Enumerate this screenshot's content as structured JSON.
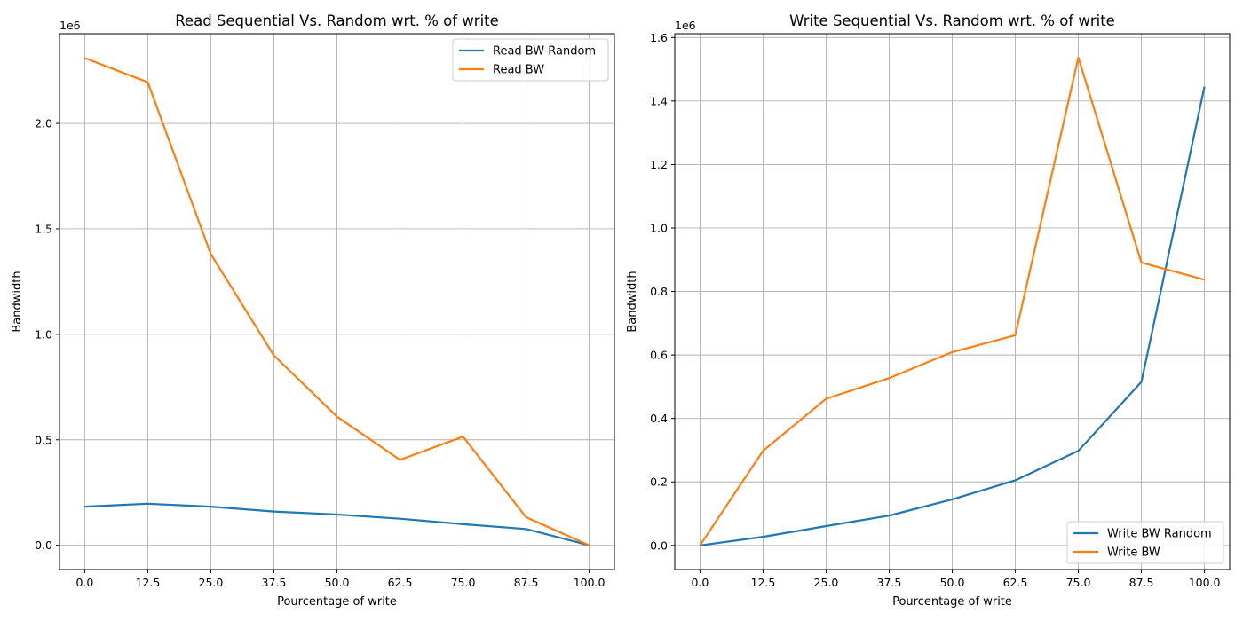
{
  "chart_data": [
    {
      "type": "line",
      "title": "Read Sequential Vs. Random wrt. % of write",
      "xlabel": "Pourcentage of write",
      "ylabel": "Bandwidth",
      "offset_label": "1e6",
      "x": [
        0.0,
        12.5,
        25.0,
        37.5,
        50.0,
        62.5,
        75.0,
        87.5,
        100.0
      ],
      "x_ticks": [
        "0.0",
        "12.5",
        "25.0",
        "37.5",
        "50.0",
        "62.5",
        "75.0",
        "87.5",
        "100.0"
      ],
      "y_ticks": [
        {
          "value": 0.0,
          "label": "0.0"
        },
        {
          "value": 0.5,
          "label": "0.5"
        },
        {
          "value": 1.0,
          "label": "1.0"
        },
        {
          "value": 1.5,
          "label": "1.5"
        },
        {
          "value": 2.0,
          "label": "2.0"
        }
      ],
      "xlim": [
        -5.0,
        105.0
      ],
      "ylim": [
        -0.115,
        2.425
      ],
      "y_scale": 1000000,
      "grid": true,
      "legend_placement": "top-right",
      "series": [
        {
          "name": "Read BW Random",
          "color": "#1f77b4",
          "values": [
            0.183,
            0.197,
            0.183,
            0.16,
            0.146,
            0.126,
            0.1,
            0.077,
            0.0
          ]
        },
        {
          "name": "Read BW",
          "color": "#ff7f0e",
          "values": [
            2.31,
            2.195,
            1.38,
            0.9,
            0.61,
            0.405,
            0.515,
            0.133,
            0.0
          ]
        }
      ]
    },
    {
      "type": "line",
      "title": "Write Sequential Vs. Random wrt. % of write",
      "xlabel": "Pourcentage of write",
      "ylabel": "Bandwidth",
      "offset_label": "1e6",
      "x": [
        0.0,
        12.5,
        25.0,
        37.5,
        50.0,
        62.5,
        75.0,
        87.5,
        100.0
      ],
      "x_ticks": [
        "0.0",
        "12.5",
        "25.0",
        "37.5",
        "50.0",
        "62.5",
        "75.0",
        "87.5",
        "100.0"
      ],
      "y_ticks": [
        {
          "value": 0.0,
          "label": "0.0"
        },
        {
          "value": 0.2,
          "label": "0.2"
        },
        {
          "value": 0.4,
          "label": "0.4"
        },
        {
          "value": 0.6,
          "label": "0.6"
        },
        {
          "value": 0.8,
          "label": "0.8"
        },
        {
          "value": 1.0,
          "label": "1.0"
        },
        {
          "value": 1.2,
          "label": "1.2"
        },
        {
          "value": 1.4,
          "label": "1.4"
        },
        {
          "value": 1.6,
          "label": "1.6"
        }
      ],
      "xlim": [
        -5.0,
        105.0
      ],
      "ylim": [
        -0.076,
        1.612
      ],
      "y_scale": 1000000,
      "grid": true,
      "legend_placement": "bottom-right",
      "series": [
        {
          "name": "Write BW Random",
          "color": "#1f77b4",
          "values": [
            0.0,
            0.027,
            0.061,
            0.094,
            0.145,
            0.205,
            0.298,
            0.515,
            1.445
          ]
        },
        {
          "name": "Write BW",
          "color": "#ff7f0e",
          "values": [
            0.0,
            0.298,
            0.462,
            0.527,
            0.609,
            0.662,
            1.537,
            0.891,
            0.837
          ]
        }
      ]
    }
  ]
}
